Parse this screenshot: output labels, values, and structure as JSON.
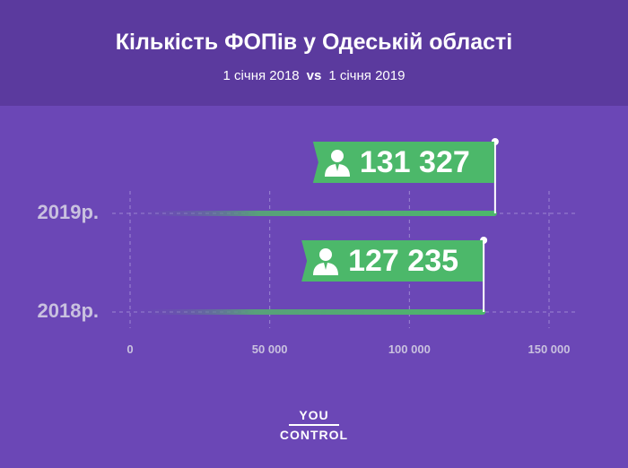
{
  "header": {
    "title": "Кількість ФОПів у Одеській області",
    "subtitle_left": "1 січня 2018",
    "subtitle_vs": "vs",
    "subtitle_right": "1 січня 2019"
  },
  "chart_data": {
    "type": "bar",
    "orientation": "horizontal",
    "title": "Кількість ФОПів у Одеській області",
    "subtitle": "1 січня 2018 vs 1 січня 2019",
    "categories": [
      "2019р.",
      "2018р."
    ],
    "values": [
      131327,
      127235
    ],
    "value_labels": [
      "131 327",
      "127 235"
    ],
    "xlim": [
      0,
      150000
    ],
    "xticks": [
      0,
      50000,
      100000,
      150000
    ],
    "xtick_labels": [
      "0",
      "50 000",
      "100 000",
      "150 000"
    ],
    "grid": true,
    "colors": {
      "bar": "#4cb86a",
      "background": "#6b47b6",
      "header": "#5b3a9e"
    }
  },
  "logo": {
    "top": "YOU",
    "bottom": "CONTROL"
  }
}
